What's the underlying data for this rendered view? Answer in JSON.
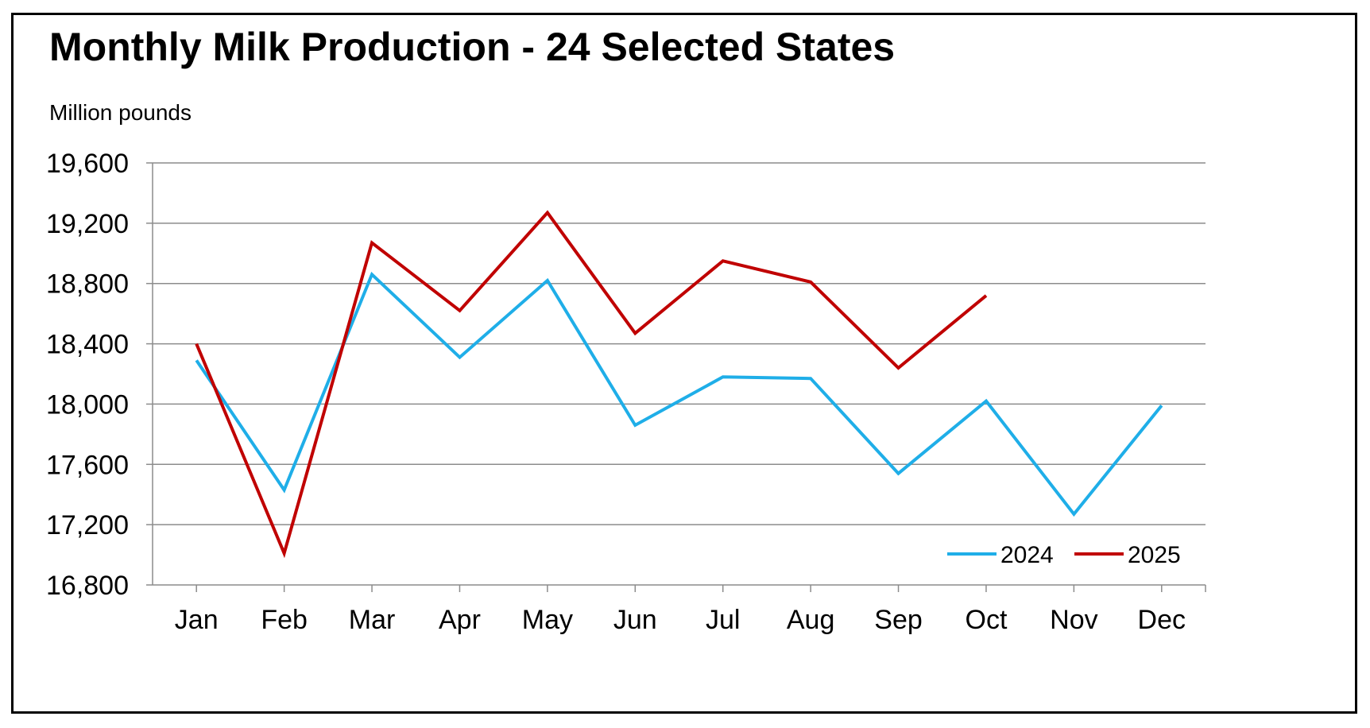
{
  "chart_data": {
    "type": "line",
    "title": "Monthly Milk Production - 24 Selected States",
    "ylabel": "Million pounds",
    "xlabel": "",
    "categories": [
      "Jan",
      "Feb",
      "Mar",
      "Apr",
      "May",
      "Jun",
      "Jul",
      "Aug",
      "Sep",
      "Oct",
      "Nov",
      "Dec"
    ],
    "ylim": [
      16800,
      19600
    ],
    "yticks": [
      16800,
      17200,
      17600,
      18000,
      18400,
      18800,
      19200,
      19600
    ],
    "ytick_labels": [
      "16,800",
      "17,200",
      "17,600",
      "18,000",
      "18,400",
      "18,800",
      "19,200",
      "19,600"
    ],
    "grid": "horizontal",
    "legend": "bottom-right",
    "series": [
      {
        "name": "2024",
        "color": "#1FAEE8",
        "values": [
          18290,
          17430,
          18860,
          18310,
          18820,
          17860,
          18180,
          18170,
          17540,
          18020,
          17270,
          17990
        ]
      },
      {
        "name": "2025",
        "color": "#C00000",
        "values": [
          18400,
          17010,
          19070,
          18620,
          19270,
          18470,
          18950,
          18810,
          18240,
          18720,
          null,
          null
        ]
      }
    ]
  }
}
